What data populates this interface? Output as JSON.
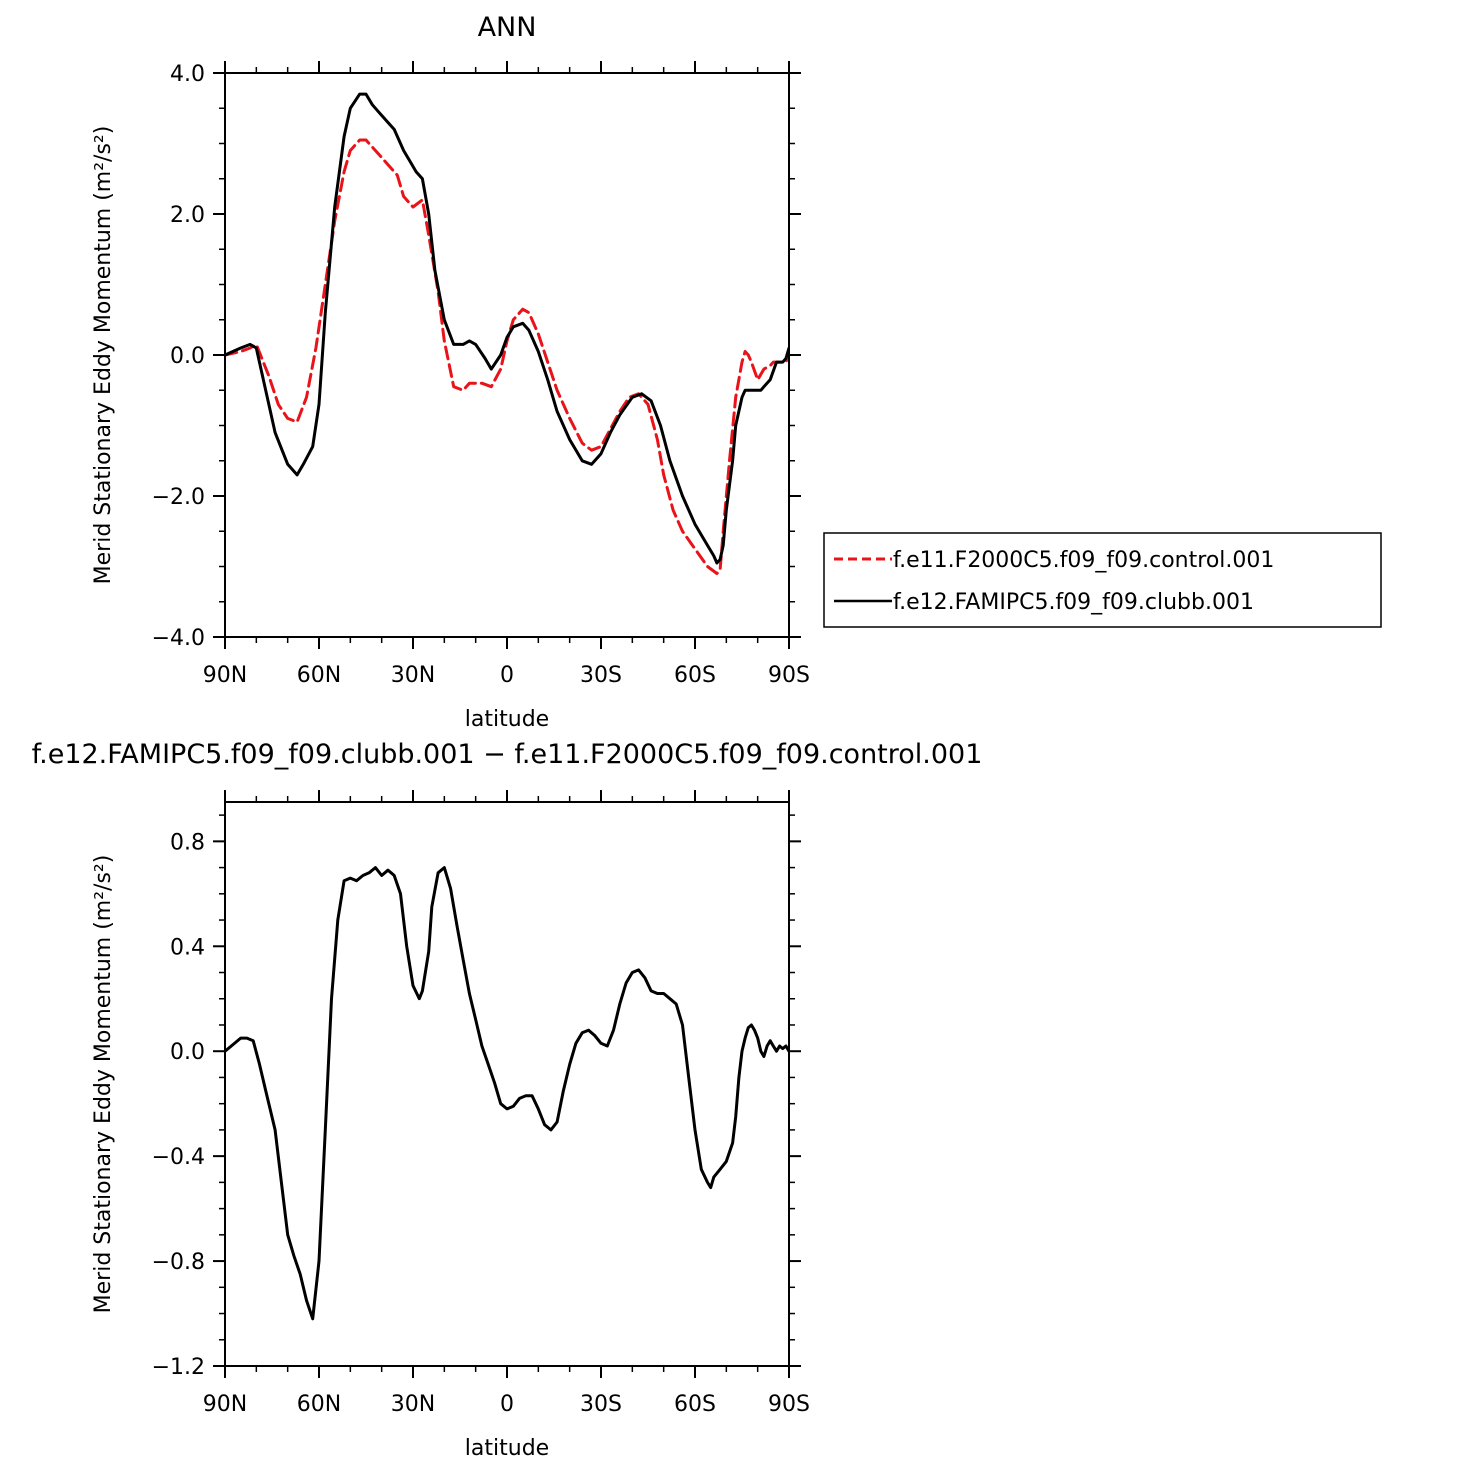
{
  "chart_data": [
    {
      "type": "line",
      "title": "ANN",
      "xlabel": "latitude",
      "ylabel": "Merid Stationary Eddy Momentum (m²/s²)",
      "xlim": [
        90,
        -90
      ],
      "ylim": [
        -4.0,
        4.0
      ],
      "x_ticks": [
        90,
        60,
        30,
        0,
        -30,
        -60,
        -90
      ],
      "x_tick_labels": [
        "90N",
        "60N",
        "30N",
        "0",
        "30S",
        "60S",
        "90S"
      ],
      "y_ticks": [
        -4,
        -2,
        0,
        2,
        4
      ],
      "y_tick_labels": [
        "−4.0",
        "−2.0",
        "0.0",
        "2.0",
        "4.0"
      ],
      "grid": false,
      "legend": "right",
      "series": [
        {
          "name": "f.e11.F2000C5.f09_f09.control.001",
          "color": "#e8141a",
          "dash": "dashed",
          "x": [
            90,
            85,
            82,
            80,
            76,
            73,
            70,
            67,
            64,
            61,
            58,
            55,
            52,
            50,
            47,
            45,
            42,
            38,
            35,
            33,
            30,
            27,
            25,
            22,
            20,
            17,
            14,
            12,
            8,
            5,
            2,
            0,
            -2,
            -5,
            -7,
            -10,
            -13,
            -16,
            -20,
            -24,
            -27,
            -30,
            -33,
            -36,
            -39,
            -42,
            -45,
            -48,
            -50,
            -53,
            -56,
            -60,
            -64,
            -67,
            -68,
            -69,
            -71,
            -73,
            -75,
            -76,
            -77,
            -78,
            -80,
            -82,
            -84,
            -85,
            -87,
            -89,
            -90
          ],
          "y": [
            0.0,
            0.05,
            0.1,
            0.15,
            -0.3,
            -0.7,
            -0.9,
            -0.95,
            -0.6,
            0.1,
            1.0,
            1.9,
            2.6,
            2.9,
            3.05,
            3.05,
            2.9,
            2.7,
            2.55,
            2.25,
            2.1,
            2.2,
            1.7,
            0.9,
            0.2,
            -0.45,
            -0.5,
            -0.4,
            -0.4,
            -0.45,
            -0.2,
            0.2,
            0.5,
            0.65,
            0.6,
            0.3,
            -0.1,
            -0.5,
            -0.9,
            -1.25,
            -1.35,
            -1.3,
            -1.05,
            -0.8,
            -0.6,
            -0.55,
            -0.7,
            -1.2,
            -1.7,
            -2.2,
            -2.5,
            -2.75,
            -3.0,
            -3.1,
            -3.05,
            -2.5,
            -1.5,
            -0.6,
            -0.1,
            0.05,
            0.0,
            -0.1,
            -0.35,
            -0.2,
            -0.15,
            -0.1,
            -0.1,
            -0.1,
            0.0
          ]
        },
        {
          "name": "f.e12.FAMIPC5.f09_f09.clubb.001",
          "color": "#000000",
          "dash": "solid",
          "x": [
            90,
            85,
            82,
            80,
            77,
            74,
            70,
            67,
            65,
            62,
            60,
            58,
            55,
            52,
            50,
            47,
            45,
            43,
            41,
            38,
            36,
            34,
            33,
            31,
            29,
            27,
            25,
            23,
            20,
            17,
            14,
            12,
            10,
            7,
            5,
            2,
            0,
            -2,
            -5,
            -7,
            -10,
            -13,
            -16,
            -20,
            -24,
            -27,
            -30,
            -33,
            -36,
            -40,
            -43,
            -46,
            -49,
            -52,
            -56,
            -60,
            -64,
            -66,
            -67,
            -68,
            -69,
            -70,
            -72,
            -73,
            -75,
            -76,
            -78,
            -80,
            -81,
            -82,
            -84,
            -86,
            -88,
            -89,
            -90
          ],
          "y": [
            0.0,
            0.1,
            0.15,
            0.1,
            -0.5,
            -1.1,
            -1.55,
            -1.7,
            -1.55,
            -1.3,
            -0.7,
            0.6,
            2.1,
            3.1,
            3.5,
            3.7,
            3.7,
            3.55,
            3.45,
            3.3,
            3.2,
            3.0,
            2.9,
            2.75,
            2.6,
            2.5,
            2.0,
            1.2,
            0.5,
            0.15,
            0.15,
            0.2,
            0.15,
            -0.05,
            -0.2,
            0.0,
            0.25,
            0.4,
            0.45,
            0.35,
            0.05,
            -0.35,
            -0.8,
            -1.2,
            -1.5,
            -1.55,
            -1.4,
            -1.1,
            -0.85,
            -0.6,
            -0.55,
            -0.65,
            -1.0,
            -1.5,
            -2.0,
            -2.4,
            -2.7,
            -2.85,
            -2.95,
            -2.9,
            -2.7,
            -2.2,
            -1.5,
            -1.0,
            -0.6,
            -0.5,
            -0.5,
            -0.5,
            -0.5,
            -0.45,
            -0.35,
            -0.1,
            -0.1,
            -0.05,
            0.1
          ]
        }
      ]
    },
    {
      "type": "line",
      "title": "f.e12.FAMIPC5.f09_f09.clubb.001  −  f.e11.F2000C5.f09_f09.control.001",
      "xlabel": "latitude",
      "ylabel": "Merid Stationary Eddy Momentum (m²/s²)",
      "xlim": [
        90,
        -90
      ],
      "ylim": [
        -1.2,
        0.95
      ],
      "x_ticks": [
        90,
        60,
        30,
        0,
        -30,
        -60,
        -90
      ],
      "x_tick_labels": [
        "90N",
        "60N",
        "30N",
        "0",
        "30S",
        "60S",
        "90S"
      ],
      "y_ticks": [
        -1.2,
        -0.8,
        -0.4,
        0.0,
        0.4,
        0.8
      ],
      "y_tick_labels": [
        "−1.2",
        "−0.8",
        "−0.4",
        "0.0",
        "0.4",
        "0.8"
      ],
      "grid": false,
      "series": [
        {
          "color": "#000000",
          "dash": "solid",
          "x": [
            90,
            88,
            85,
            83,
            81,
            79,
            77,
            74,
            72,
            70,
            68,
            66,
            64,
            62,
            60,
            58,
            56,
            54,
            52,
            50,
            48,
            46,
            44,
            42,
            40,
            38,
            37,
            36,
            34,
            32,
            30,
            28,
            27,
            25,
            24,
            22,
            20,
            18,
            16,
            14,
            12,
            10,
            8,
            6,
            4,
            2,
            0,
            -2,
            -4,
            -6,
            -8,
            -10,
            -12,
            -14,
            -16,
            -18,
            -20,
            -22,
            -24,
            -26,
            -28,
            -30,
            -32,
            -34,
            -36,
            -38,
            -40,
            -42,
            -44,
            -46,
            -48,
            -50,
            -52,
            -54,
            -56,
            -58,
            -60,
            -62,
            -64,
            -65,
            -66,
            -68,
            -70,
            -72,
            -73,
            -74,
            -75,
            -76,
            -77,
            -78,
            -79,
            -80,
            -81,
            -82,
            -83,
            -84,
            -85,
            -86,
            -87,
            -88,
            -89,
            -90
          ],
          "y": [
            0.0,
            0.02,
            0.05,
            0.05,
            0.04,
            -0.05,
            -0.15,
            -0.3,
            -0.5,
            -0.7,
            -0.78,
            -0.85,
            -0.95,
            -1.02,
            -0.8,
            -0.3,
            0.2,
            0.5,
            0.65,
            0.66,
            0.65,
            0.67,
            0.68,
            0.7,
            0.67,
            0.69,
            0.68,
            0.67,
            0.6,
            0.4,
            0.25,
            0.2,
            0.23,
            0.38,
            0.55,
            0.68,
            0.7,
            0.62,
            0.48,
            0.35,
            0.22,
            0.12,
            0.02,
            -0.05,
            -0.12,
            -0.2,
            -0.22,
            -0.21,
            -0.18,
            -0.17,
            -0.17,
            -0.22,
            -0.28,
            -0.3,
            -0.27,
            -0.15,
            -0.05,
            0.03,
            0.07,
            0.08,
            0.06,
            0.03,
            0.02,
            0.08,
            0.18,
            0.26,
            0.3,
            0.31,
            0.28,
            0.23,
            0.22,
            0.22,
            0.2,
            0.18,
            0.1,
            -0.1,
            -0.3,
            -0.45,
            -0.5,
            -0.52,
            -0.48,
            -0.45,
            -0.42,
            -0.35,
            -0.25,
            -0.1,
            0.0,
            0.05,
            0.09,
            0.1,
            0.08,
            0.05,
            0.0,
            -0.02,
            0.02,
            0.04,
            0.02,
            0.0,
            0.02,
            0.01,
            0.02,
            0.0
          ]
        }
      ]
    }
  ]
}
